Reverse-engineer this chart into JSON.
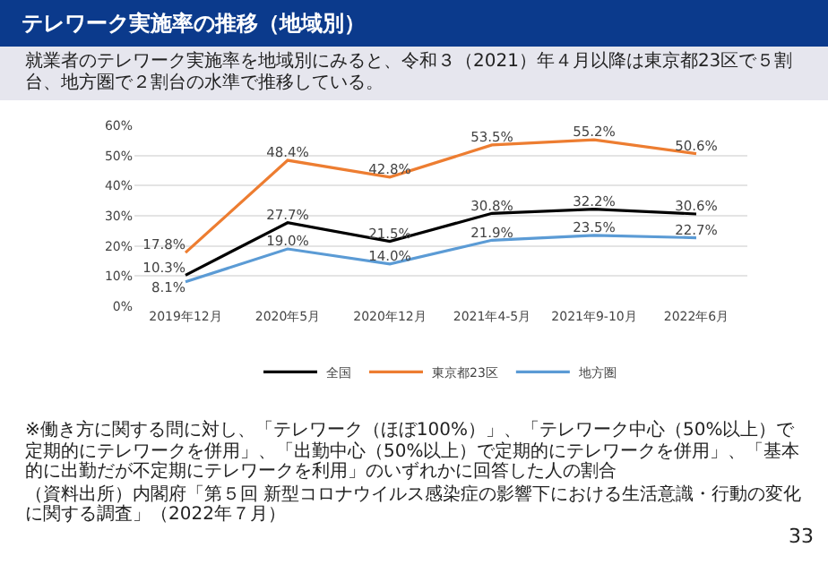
{
  "chart_data": {
    "type": "line",
    "title": "テレワーク実施率の推移（地域別）",
    "subtitle": "就業者のテレワーク実施率を地域別にみると、令和３（2021）年４月以降は東京都23区で５割台、地方圏で２割台の水準で推移している。",
    "categories": [
      "2019年12月",
      "2020年5月",
      "2020年12月",
      "2021年4-5月",
      "2021年9-10月",
      "2022年6月"
    ],
    "series": [
      {
        "name": "全国",
        "color": "#000000",
        "values": [
          10.3,
          27.7,
          21.5,
          30.8,
          32.2,
          30.6
        ],
        "value_labels": [
          "10.3%",
          "27.7%",
          "21.5%",
          "30.8%",
          "32.2%",
          "30.6%"
        ]
      },
      {
        "name": "東京都23区",
        "color": "#ed7d31",
        "values": [
          17.8,
          48.4,
          42.8,
          53.5,
          55.2,
          50.6
        ],
        "value_labels": [
          "17.8%",
          "48.4%",
          "42.8%",
          "53.5%",
          "55.2%",
          "50.6%"
        ]
      },
      {
        "name": "地方圏",
        "color": "#5b9bd5",
        "values": [
          8.1,
          19.0,
          14.0,
          21.9,
          23.5,
          22.7
        ],
        "value_labels": [
          "8.1%",
          "19.0%",
          "14.0%",
          "21.9%",
          "23.5%",
          "22.7%"
        ]
      }
    ],
    "ylim": [
      0,
      60
    ],
    "yticks": [
      {
        "value": 0,
        "label": "0%"
      },
      {
        "value": 10,
        "label": "10%"
      },
      {
        "value": 20,
        "label": "20%"
      },
      {
        "value": 30,
        "label": "30%"
      },
      {
        "value": 40,
        "label": "40%"
      },
      {
        "value": 50,
        "label": "50%"
      },
      {
        "value": 60,
        "label": "60%"
      }
    ],
    "grid": "y",
    "legend": "bottom",
    "marker": "none",
    "line_style": "solid",
    "annotations": [
      "※働き方に関する問に対し、「テレワーク（ほぼ100%）」、「テレワーク中心（50%以上）で定期的にテレワークを併用」、「出勤中心（50%以上）で定期的にテレワークを併用」、「基本的に出勤だが不定期にテレワークを利用」のいずれかに回答した人の割合",
      "（資料出所）内閣府「第５回 新型コロナウイルス感染症の影響下における生活意識・行動の変化に関する調査」（2022年７月）",
      "33"
    ]
  }
}
